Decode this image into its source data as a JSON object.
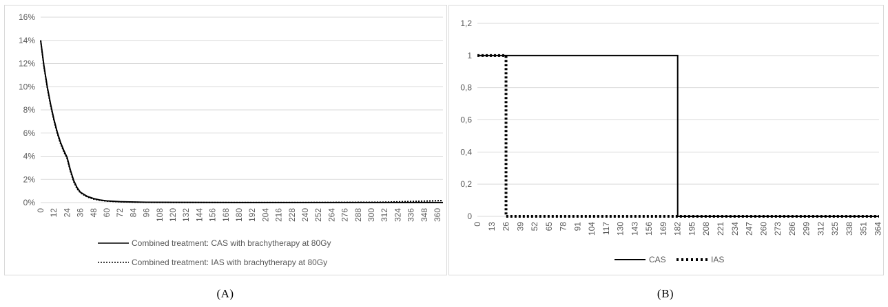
{
  "captions": {
    "a": "(A)",
    "b": "(B)"
  },
  "colors": {
    "line": "#000000",
    "grid": "#d9d9d9",
    "text": "#595959",
    "border": "#d9d9d9"
  },
  "chart_data": [
    {
      "type": "line",
      "title": "",
      "xlabel": "",
      "ylabel": "",
      "ylim": [
        0,
        0.16
      ],
      "xlim": [
        0,
        365
      ],
      "y_ticks": [
        0,
        0.02,
        0.04,
        0.06,
        0.08,
        0.1,
        0.12,
        0.14,
        0.16
      ],
      "y_tick_labels": [
        "0%",
        "2%",
        "4%",
        "6%",
        "8%",
        "10%",
        "12%",
        "14%",
        "16%"
      ],
      "x_ticks": [
        0,
        12,
        24,
        36,
        48,
        60,
        72,
        84,
        96,
        108,
        120,
        132,
        144,
        156,
        168,
        180,
        192,
        204,
        216,
        228,
        240,
        252,
        264,
        276,
        288,
        300,
        312,
        324,
        336,
        348,
        360
      ],
      "x_tick_labels": [
        "0",
        "12",
        "24",
        "36",
        "48",
        "60",
        "72",
        "84",
        "96",
        "108",
        "120",
        "132",
        "144",
        "156",
        "168",
        "180",
        "192",
        "204",
        "216",
        "228",
        "240",
        "252",
        "264",
        "276",
        "288",
        "300",
        "312",
        "324",
        "336",
        "348",
        "360"
      ],
      "grid": true,
      "legend_position": "bottom",
      "series": [
        {
          "name": "Combined treatment: CAS with brachytherapy at 80Gy",
          "style": "solid",
          "x": [
            0,
            3,
            6,
            9,
            12,
            15,
            18,
            21,
            24,
            27,
            30,
            33,
            36,
            42,
            48,
            54,
            60,
            72,
            84,
            96,
            120,
            180,
            240,
            270,
            300,
            330,
            365
          ],
          "y": [
            0.14,
            0.118,
            0.1,
            0.085,
            0.072,
            0.061,
            0.052,
            0.045,
            0.039,
            0.028,
            0.019,
            0.013,
            0.009,
            0.0055,
            0.0035,
            0.0022,
            0.0015,
            0.0008,
            0.0005,
            0.0003,
            0.0002,
            0.0001,
            0.0001,
            0.0001,
            0.0001,
            0.0001,
            0.0001
          ]
        },
        {
          "name": "Combined treatment: IAS with brachytherapy at 80Gy",
          "style": "dotted",
          "x": [
            0,
            3,
            6,
            9,
            12,
            15,
            18,
            21,
            24,
            27,
            30,
            33,
            36,
            42,
            48,
            54,
            60,
            72,
            84,
            96,
            120,
            180,
            240,
            270,
            300,
            312,
            324,
            336,
            348,
            365
          ],
          "y": [
            0.14,
            0.117,
            0.099,
            0.084,
            0.071,
            0.06,
            0.051,
            0.044,
            0.038,
            0.027,
            0.018,
            0.012,
            0.0085,
            0.005,
            0.003,
            0.002,
            0.0013,
            0.0007,
            0.0004,
            0.0002,
            0.0001,
            0.0001,
            0.0001,
            0.0002,
            0.0003,
            0.0004,
            0.0007,
            0.001,
            0.0013,
            0.0018
          ]
        }
      ]
    },
    {
      "type": "line",
      "title": "",
      "xlabel": "",
      "ylabel": "",
      "ylim": [
        0,
        1.2
      ],
      "xlim": [
        0,
        365
      ],
      "y_ticks": [
        0,
        0.2,
        0.4,
        0.6,
        0.8,
        1,
        1.2
      ],
      "y_tick_labels": [
        "0",
        "0,2",
        "0,4",
        "0,6",
        "0,8",
        "1",
        "1,2"
      ],
      "x_ticks": [
        0,
        13,
        26,
        39,
        52,
        65,
        78,
        91,
        104,
        117,
        130,
        143,
        156,
        169,
        182,
        195,
        208,
        221,
        234,
        247,
        260,
        273,
        286,
        299,
        312,
        325,
        338,
        351,
        364
      ],
      "x_tick_labels": [
        "0",
        "13",
        "26",
        "39",
        "52",
        "65",
        "78",
        "91",
        "104",
        "117",
        "130",
        "143",
        "156",
        "169",
        "182",
        "195",
        "208",
        "221",
        "234",
        "247",
        "260",
        "273",
        "286",
        "299",
        "312",
        "325",
        "338",
        "351",
        "364"
      ],
      "grid": true,
      "legend_position": "bottom",
      "series": [
        {
          "name": "CAS",
          "style": "solid",
          "x": [
            0,
            182,
            182,
            365
          ],
          "y": [
            1,
            1,
            0,
            0
          ]
        },
        {
          "name": "IAS",
          "style": "dotted",
          "x": [
            0,
            26,
            26,
            365
          ],
          "y": [
            1,
            1,
            0,
            0
          ]
        }
      ]
    }
  ]
}
